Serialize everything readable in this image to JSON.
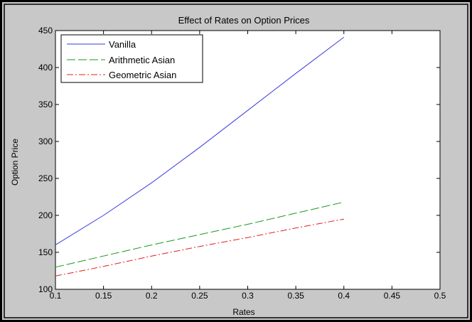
{
  "chart_data": {
    "type": "line",
    "title": "Effect of Rates on Option Prices",
    "xlabel": "Rates",
    "ylabel": "Option Price",
    "xlim": [
      0.1,
      0.5
    ],
    "ylim": [
      100,
      450
    ],
    "xticks": [
      0.1,
      0.15,
      0.2,
      0.25,
      0.3,
      0.35,
      0.4,
      0.45,
      0.5
    ],
    "xtick_labels": [
      "0.1",
      "0.15",
      "0.2",
      "0.25",
      "0.3",
      "0.35",
      "0.4",
      "0.45",
      "0.5"
    ],
    "yticks": [
      100,
      150,
      200,
      250,
      300,
      350,
      400,
      450
    ],
    "ytick_labels": [
      "100",
      "150",
      "200",
      "250",
      "300",
      "350",
      "400",
      "450"
    ],
    "grid": false,
    "legend_position": "top-left",
    "x": [
      0.1,
      0.15,
      0.2,
      0.25,
      0.3,
      0.35,
      0.4
    ],
    "series": [
      {
        "name": "Vanilla",
        "values": [
          160,
          200,
          244,
          292,
          342,
          392,
          441
        ],
        "color": "#3a3adf",
        "dash": "solid"
      },
      {
        "name": "Arithmetic Asian",
        "values": [
          130,
          145,
          160,
          174,
          188,
          203,
          218
        ],
        "color": "#1a9a1a",
        "dash": "dashed"
      },
      {
        "name": "Geometric Asian",
        "values": [
          118,
          131,
          145,
          158,
          170,
          183,
          195
        ],
        "color": "#e02020",
        "dash": "dashdot"
      }
    ]
  },
  "colors": {
    "window_background": "#c8c8c8",
    "plot_background": "#ffffff",
    "axes": "#000000"
  }
}
